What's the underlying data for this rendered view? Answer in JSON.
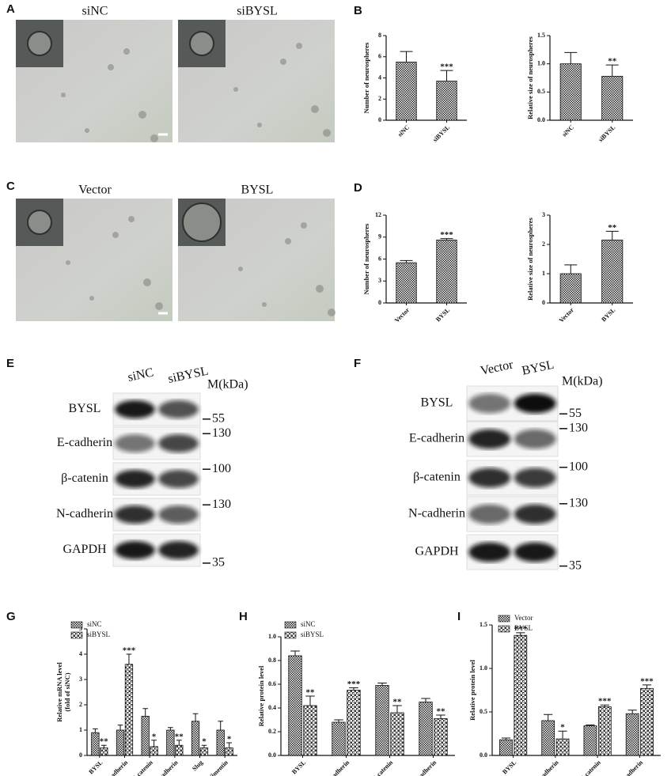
{
  "panel_letters": [
    "A",
    "B",
    "C",
    "D",
    "E",
    "F",
    "G",
    "H",
    "I"
  ],
  "micrographs": [
    {
      "label": "siNC"
    },
    {
      "label": "siBYSL"
    },
    {
      "label": "Vector"
    },
    {
      "label": "BYSL"
    }
  ],
  "blots": [
    {
      "lanes": [
        "siNC",
        "siBYSL"
      ],
      "marker_title": "M(kDa)",
      "rows": [
        {
          "protein": "BYSL",
          "marker": 55
        },
        {
          "protein": "E-cadherin",
          "marker": 130
        },
        {
          "protein": "β-catenin",
          "marker": 100
        },
        {
          "protein": "N-cadherin",
          "marker": 130
        },
        {
          "protein": "GAPDH",
          "marker": 35
        }
      ]
    },
    {
      "lanes": [
        "Vector",
        "BYSL"
      ],
      "marker_title": "M(kDa)",
      "rows": [
        {
          "protein": "BYSL",
          "marker": 55
        },
        {
          "protein": "E-cadherin",
          "marker": 130
        },
        {
          "protein": "β-catenin",
          "marker": 100
        },
        {
          "protein": "N-cadherin",
          "marker": 130
        },
        {
          "protein": "GAPDH",
          "marker": 35
        }
      ]
    }
  ],
  "chart_data": [
    {
      "type": "bar",
      "y_label": [
        "Number of neurospheres"
      ],
      "categories": [
        "siNC",
        "siBYSL"
      ],
      "series": [
        {
          "pattern": "check",
          "values": [
            5.5,
            3.7
          ],
          "errors": [
            1.0,
            1.0
          ],
          "stars": [
            null,
            "***"
          ]
        }
      ],
      "ylim": [
        0,
        8
      ],
      "yticks": [
        0,
        2,
        4,
        6,
        8
      ]
    },
    {
      "type": "bar",
      "y_label": [
        "Relative size of neurospheres"
      ],
      "categories": [
        "siNC",
        "siBYSL"
      ],
      "series": [
        {
          "pattern": "check",
          "values": [
            1.0,
            0.78
          ],
          "errors": [
            0.2,
            0.2
          ],
          "stars": [
            null,
            "**"
          ]
        }
      ],
      "ylim": [
        0,
        1.5
      ],
      "yticks": [
        {
          "value": 0,
          "label": "0.0"
        },
        0.5,
        {
          "value": 1,
          "label": "1.0"
        },
        1.5
      ]
    },
    {
      "type": "bar",
      "y_label": [
        "Number of neurospheres"
      ],
      "categories": [
        "Vector",
        "BYSL"
      ],
      "series": [
        {
          "pattern": "check",
          "values": [
            5.5,
            8.6
          ],
          "errors": [
            0.3,
            0.2
          ],
          "stars": [
            null,
            "***"
          ]
        }
      ],
      "ylim": [
        0,
        12
      ],
      "yticks": [
        0,
        3,
        6,
        9,
        12
      ]
    },
    {
      "type": "bar",
      "y_label": [
        "Relative size of neurospheres"
      ],
      "categories": [
        "Vector",
        "BYSL"
      ],
      "series": [
        {
          "pattern": "check",
          "values": [
            1.0,
            2.15
          ],
          "errors": [
            0.3,
            0.3
          ],
          "stars": [
            null,
            "**"
          ]
        }
      ],
      "ylim": [
        0,
        3
      ],
      "yticks": [
        0,
        1,
        2,
        3
      ]
    },
    {
      "type": "bar",
      "y_label": [
        "Relative mRNA level",
        "(fold of siNC)"
      ],
      "categories": [
        "BYSL",
        "E-cadherin",
        "β-catenin",
        "N-cadherin",
        "Slug",
        "Vimentin"
      ],
      "series": [
        {
          "name": "siNC",
          "pattern": "check",
          "values": [
            0.9,
            1.0,
            1.55,
            1.0,
            1.35,
            1.0
          ],
          "errors": [
            0.15,
            0.2,
            0.3,
            0.1,
            0.3,
            0.35
          ],
          "stars": [
            null,
            null,
            null,
            null,
            null,
            null
          ]
        },
        {
          "name": "siBYSL",
          "pattern": "cross",
          "values": [
            0.3,
            3.6,
            0.35,
            0.4,
            0.3,
            0.3
          ],
          "errors": [
            0.1,
            0.4,
            0.25,
            0.2,
            0.1,
            0.2
          ],
          "stars": [
            "**",
            "***",
            "*",
            "**",
            "*",
            "*"
          ]
        }
      ],
      "ylim": [
        0,
        5
      ],
      "yticks": [
        0,
        1,
        2,
        3,
        4,
        5
      ],
      "legend": "top-left"
    },
    {
      "type": "bar",
      "y_label": [
        "Relative protein level"
      ],
      "categories": [
        "BYSL",
        "E-cadherin",
        "β-catenin",
        "N-cadherin"
      ],
      "series": [
        {
          "name": "siNC",
          "pattern": "check",
          "values": [
            0.84,
            0.28,
            0.59,
            0.45
          ],
          "errors": [
            0.04,
            0.02,
            0.02,
            0.03
          ],
          "stars": [
            null,
            null,
            null,
            null
          ]
        },
        {
          "name": "siBYSL",
          "pattern": "cross",
          "values": [
            0.42,
            0.55,
            0.36,
            0.31
          ],
          "errors": [
            0.08,
            0.02,
            0.06,
            0.03
          ],
          "stars": [
            "**",
            "***",
            "**",
            "**"
          ]
        }
      ],
      "ylim": [
        0,
        1
      ],
      "yticks": [
        {
          "value": 0,
          "label": "0.0"
        },
        0.2,
        0.4,
        0.6,
        0.8,
        {
          "value": 1,
          "label": "1.0"
        }
      ],
      "legend": "top-left"
    },
    {
      "type": "bar",
      "y_label": [
        "Relative protein level"
      ],
      "categories": [
        "BYSL",
        "E-cadherin",
        "β-catenin",
        "N-cadherin"
      ],
      "series": [
        {
          "name": "Vector",
          "pattern": "check",
          "values": [
            0.18,
            0.4,
            0.34,
            0.48
          ],
          "errors": [
            0.02,
            0.07,
            0.01,
            0.04
          ],
          "stars": [
            null,
            null,
            null,
            null
          ]
        },
        {
          "name": "BYSL",
          "pattern": "cross",
          "values": [
            1.38,
            0.19,
            0.56,
            0.77
          ],
          "errors": [
            0.03,
            0.09,
            0.02,
            0.04
          ],
          "stars": [
            "***",
            "*",
            "***",
            "***"
          ]
        }
      ],
      "ylim": [
        0,
        1.5
      ],
      "yticks": [
        {
          "value": 0,
          "label": "0.0"
        },
        0.5,
        {
          "value": 1,
          "label": "1.0"
        },
        1.5
      ],
      "legend": "top-left"
    }
  ]
}
